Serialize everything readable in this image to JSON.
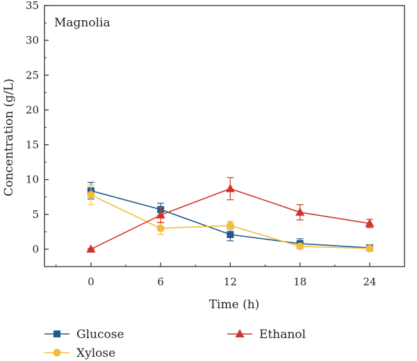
{
  "chart_data": {
    "type": "line",
    "annotation": "Magnolia",
    "xlabel": "Time (h)",
    "ylabel": "Concentration (g/L)",
    "x": [
      0,
      6,
      12,
      18,
      24
    ],
    "x_ticks": [
      "0",
      "6",
      "12",
      "18",
      "24"
    ],
    "xlim": [
      -4,
      27
    ],
    "y_ticks": [
      "0",
      "5",
      "10",
      "15",
      "20",
      "25",
      "30",
      "35"
    ],
    "ylim": [
      -2.5,
      35
    ],
    "grid": false,
    "legend_position": "bottom",
    "series": [
      {
        "name": "Glucose",
        "color": "#1f5a8a",
        "marker": "square",
        "values": [
          8.4,
          5.7,
          2.1,
          0.8,
          0.2
        ],
        "errors": [
          1.2,
          0.9,
          0.9,
          0.7,
          0.3
        ]
      },
      {
        "name": "Xylose",
        "color": "#f3bd3c",
        "marker": "circle",
        "values": [
          7.8,
          3.0,
          3.4,
          0.4,
          0.1
        ],
        "errors": [
          1.4,
          0.9,
          0.6,
          0.3,
          0.2
        ]
      },
      {
        "name": "Ethanol",
        "color": "#cf3529",
        "marker": "triangle",
        "values": [
          0.0,
          4.9,
          8.7,
          5.3,
          3.7
        ],
        "errors": [
          0.1,
          1.1,
          1.6,
          1.1,
          0.6
        ]
      }
    ]
  }
}
